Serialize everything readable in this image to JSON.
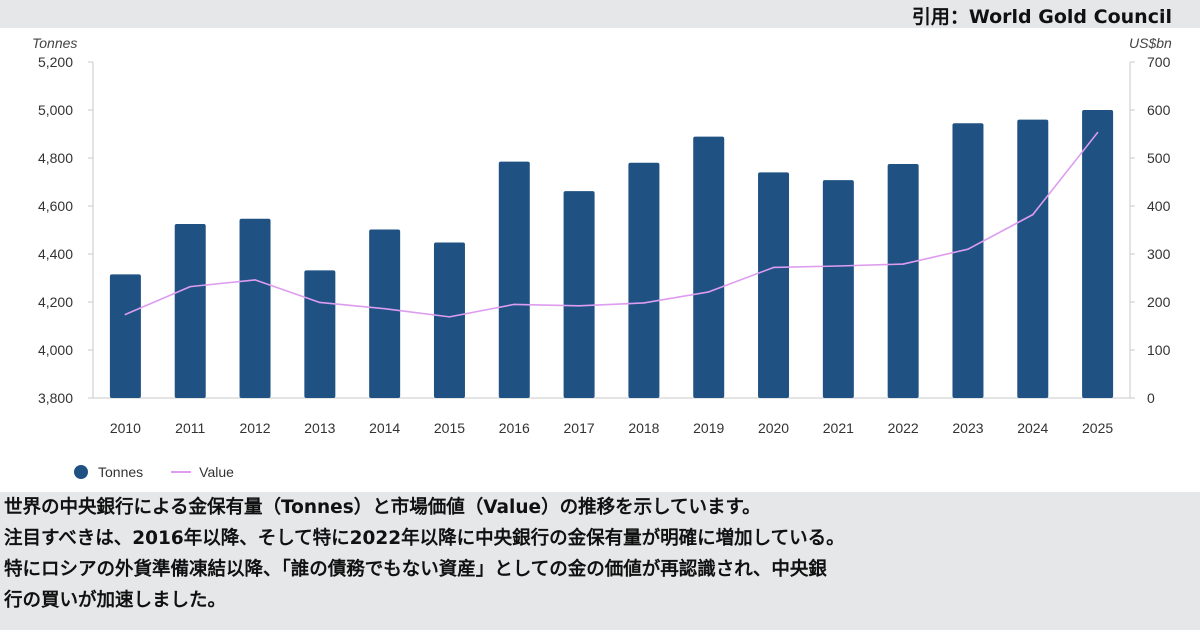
{
  "header": {
    "source": "引用：World Gold Council"
  },
  "chart_data": {
    "type": "bar",
    "categories": [
      "2010",
      "2011",
      "2012",
      "2013",
      "2014",
      "2015",
      "2016",
      "2017",
      "2018",
      "2019",
      "2020",
      "2021",
      "2022",
      "2023",
      "2024",
      "2025"
    ],
    "series": [
      {
        "name": "Tonnes",
        "type": "bar",
        "axis": "left",
        "color": "#1f5283",
        "values": [
          4315,
          4525,
          4547,
          4332,
          4502,
          4448,
          4785,
          4662,
          4780,
          4889,
          4740,
          4708,
          4775,
          4945,
          4960,
          5000
        ]
      },
      {
        "name": "Value",
        "type": "line",
        "axis": "right",
        "color": "#dd9cf0",
        "values": [
          174,
          232,
          246,
          199,
          186,
          169,
          195,
          192,
          198,
          221,
          272,
          275,
          279,
          310,
          382,
          553
        ]
      }
    ],
    "left_axis": {
      "unit_label": "Tonnes",
      "ylim": [
        3800,
        5200
      ],
      "ticks": [
        "3,800",
        "4,000",
        "4,200",
        "4,400",
        "4,600",
        "4,800",
        "5,000",
        "5,200"
      ]
    },
    "right_axis": {
      "unit_label": "US$bn",
      "ylim": [
        0,
        700
      ],
      "ticks": [
        "0",
        "100",
        "200",
        "300",
        "400",
        "500",
        "600",
        "700"
      ]
    },
    "legend": {
      "placement": "bottom-left",
      "items": [
        "Tonnes",
        "Value"
      ]
    },
    "grid": false
  },
  "caption": {
    "lines": [
      "世界の中央銀行による金保有量（Tonnes）と市場価値（Value）の推移を示しています。",
      "注目すべきは、2016年以降、そして特に2022年以降に中央銀行の金保有量が明確に増加している。",
      "特にロシアの外貨準備凍結以降、「誰の債務でもない資産」としての金の価値が再認識され、中央銀",
      "行の買いが加速しました。"
    ]
  }
}
